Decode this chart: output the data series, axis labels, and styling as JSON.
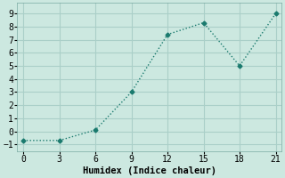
{
  "x": [
    0,
    3,
    6,
    9,
    12,
    15,
    18,
    21
  ],
  "y": [
    -0.7,
    -0.7,
    0.1,
    3.0,
    7.4,
    8.3,
    5.0,
    9.0
  ],
  "line_color": "#1a7a6e",
  "marker": "D",
  "marker_size": 2.5,
  "background_color": "#cce8e0",
  "grid_color": "#aacfc8",
  "xlabel": "Humidex (Indice chaleur)",
  "xlabel_fontsize": 7.5,
  "xlim": [
    -0.5,
    21.5
  ],
  "ylim": [
    -1.5,
    9.8
  ],
  "xticks": [
    0,
    3,
    6,
    9,
    12,
    15,
    18,
    21
  ],
  "yticks": [
    -1,
    0,
    1,
    2,
    3,
    4,
    5,
    6,
    7,
    8,
    9
  ],
  "tick_fontsize": 7,
  "font_family": "monospace"
}
